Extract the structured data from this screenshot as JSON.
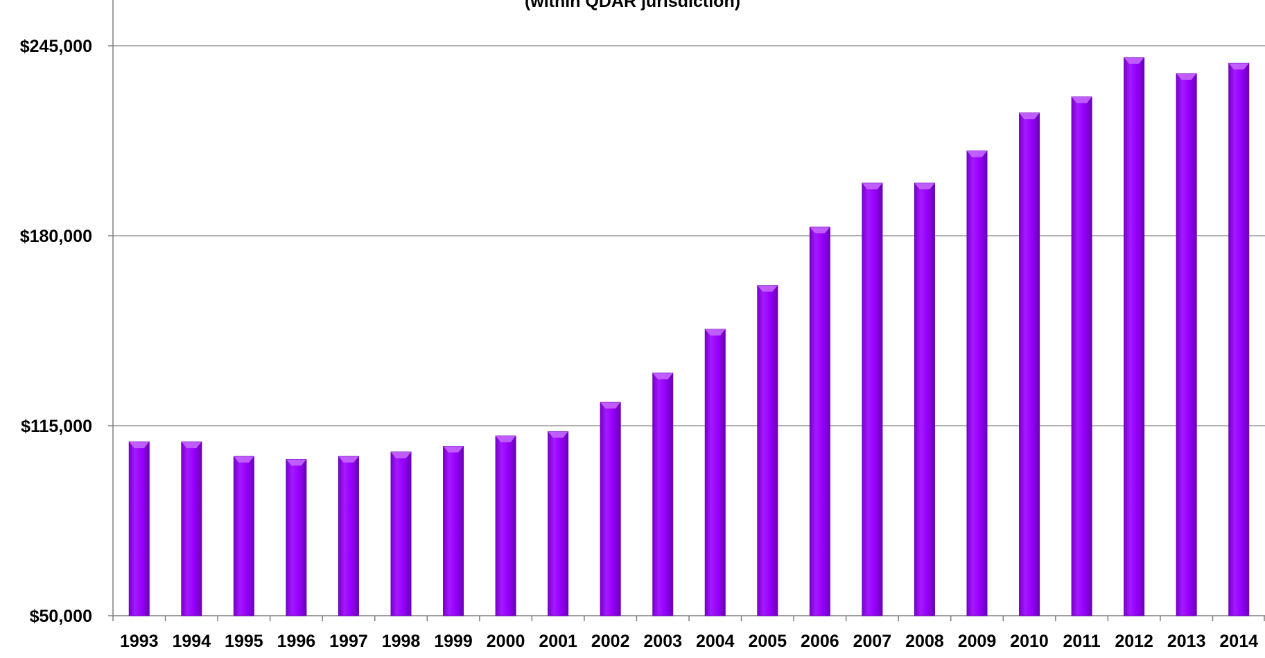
{
  "chart_data": {
    "type": "bar",
    "title_partial": "(within QDAR jurisdiction)",
    "categories": [
      "1993",
      "1994",
      "1995",
      "1996",
      "1997",
      "1998",
      "1999",
      "2000",
      "2001",
      "2002",
      "2003",
      "2004",
      "2005",
      "2006",
      "2007",
      "2008",
      "2009",
      "2010",
      "2011",
      "2012",
      "2013",
      "2014"
    ],
    "values": [
      109500,
      109500,
      104500,
      103500,
      104500,
      106000,
      108000,
      111500,
      113000,
      123000,
      133000,
      148000,
      163000,
      183000,
      198000,
      198000,
      209000,
      222000,
      227500,
      241000,
      235500,
      239000
    ],
    "ylim": [
      50000,
      245000
    ],
    "yticks": [
      50000,
      115000,
      180000,
      245000
    ],
    "ytick_labels": [
      "$50,000",
      "$115,000",
      "$180,000",
      "$245,000"
    ],
    "xlabel": "",
    "ylabel": "",
    "grid": true,
    "legend": "none",
    "colors": {
      "bar": "#9900ff",
      "bar_dark": "#6a00b8",
      "bar_top": "#c466ff",
      "grid": "#999999",
      "axis": "#7f7f7f"
    }
  }
}
